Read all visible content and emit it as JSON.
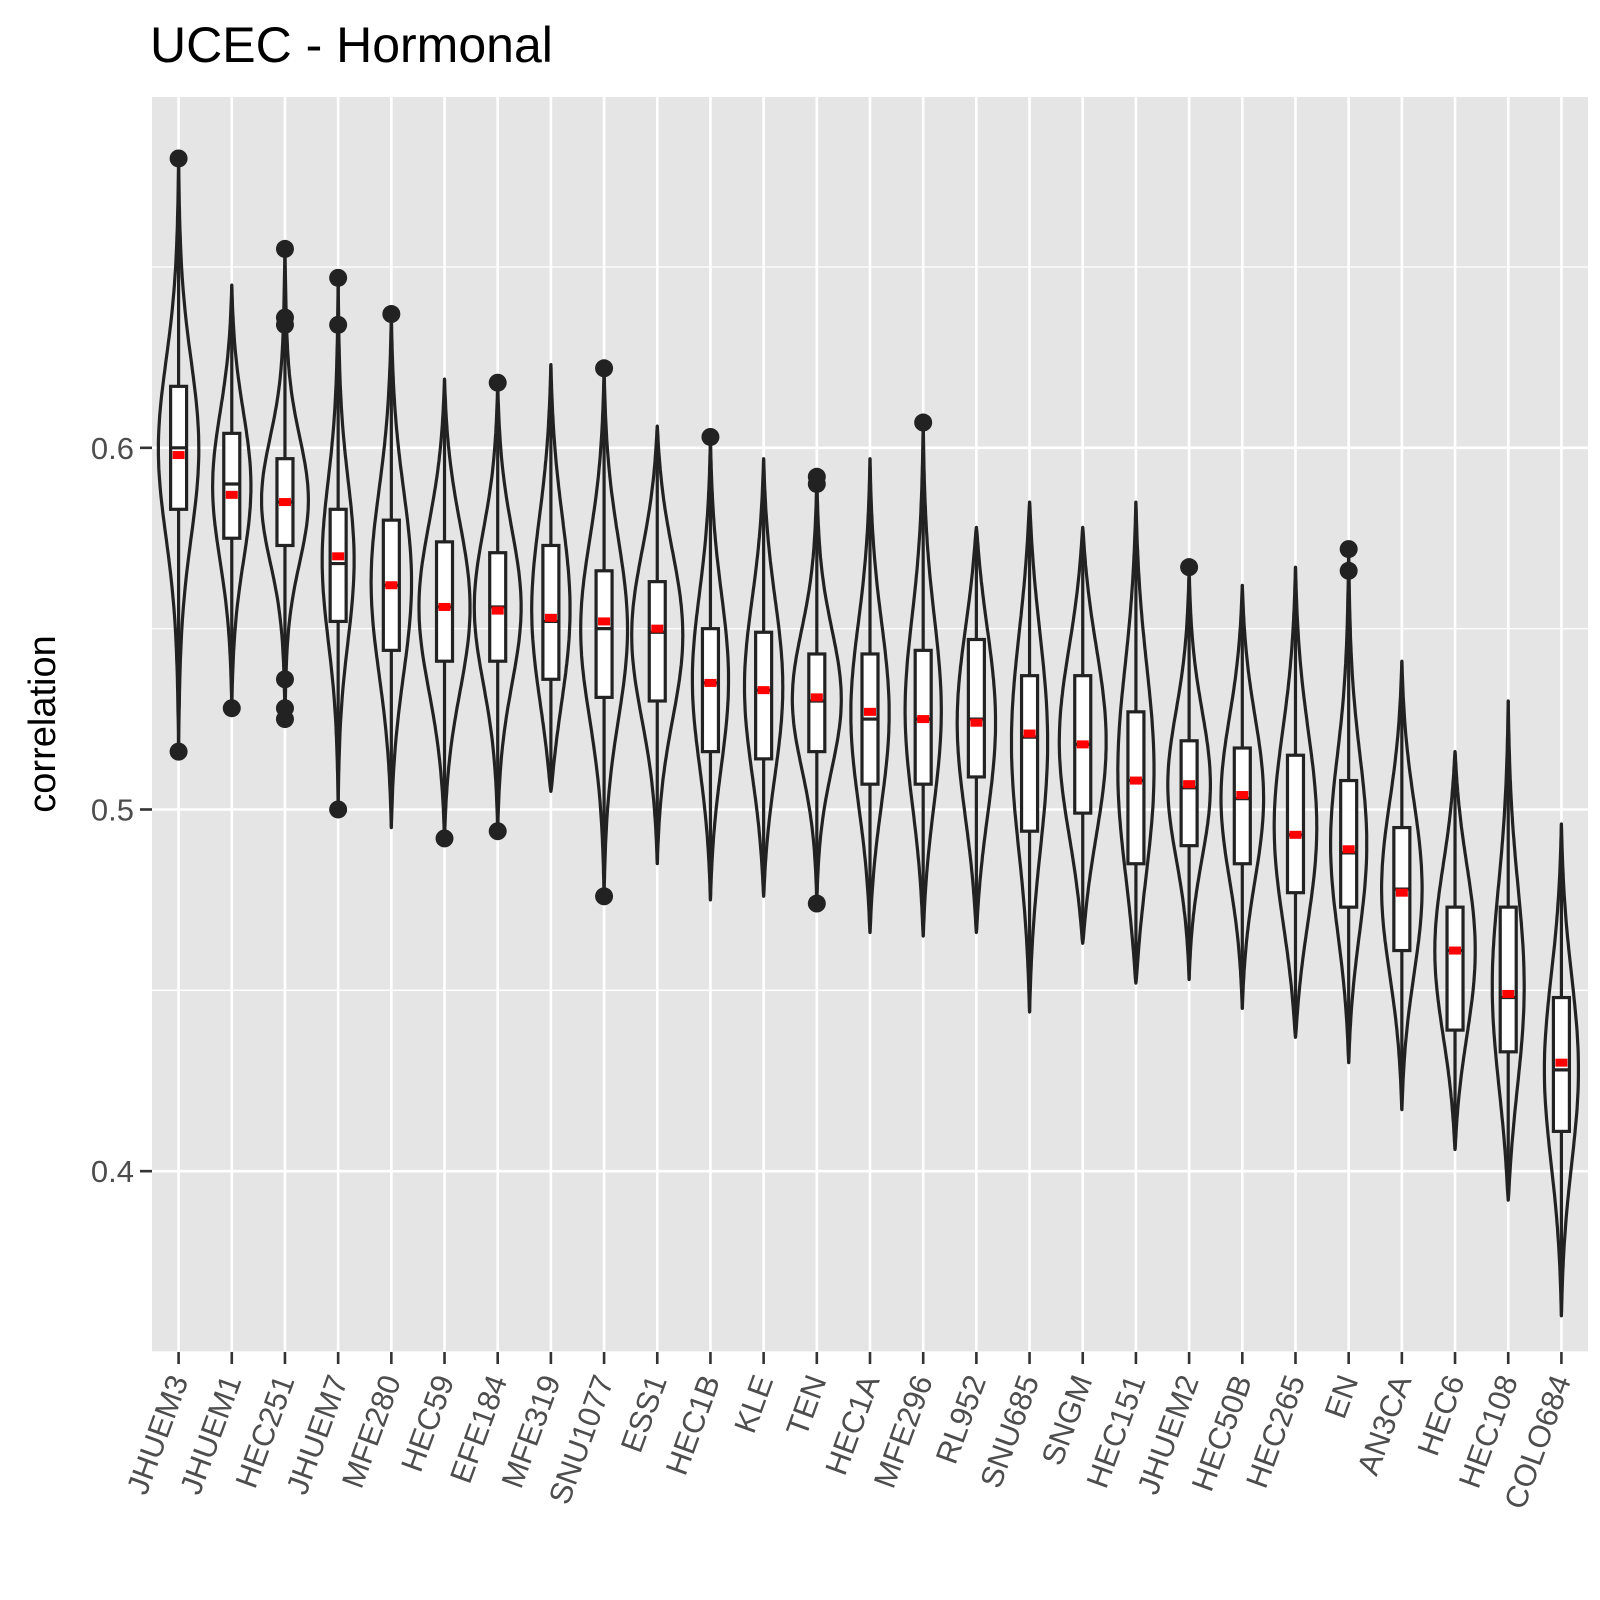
{
  "chart_data": {
    "type": "violin",
    "title": "UCEC - Hormonal",
    "xlabel": "",
    "ylabel": "correlation",
    "ylim": [
      0.35,
      0.697
    ],
    "yticks": [
      0.4,
      0.5,
      0.6
    ],
    "ytick_labels": [
      "0.4",
      "0.5",
      "0.6"
    ],
    "grid": true,
    "legend": "none",
    "colors": {
      "panel": "#e5e5e5",
      "grid": "#ffffff",
      "outline": "#222222",
      "mean": "#ff0000",
      "tick_text": "#4d4d4d"
    },
    "categories": [
      "JHUEM3",
      "JHUEM1",
      "HEC251",
      "JHUEM7",
      "MFE280",
      "HEC59",
      "EFE184",
      "MFE319",
      "SNU1077",
      "ESS1",
      "HEC1B",
      "KLE",
      "TEN",
      "HEC1A",
      "MFE296",
      "RL952",
      "SNU685",
      "SNGM",
      "HEC151",
      "JHUEM2",
      "HEC50B",
      "HEC265",
      "EN",
      "AN3CA",
      "HEC6",
      "HEC108",
      "COLO684"
    ],
    "series": [
      {
        "category": "JHUEM3",
        "min": 0.516,
        "max": 0.68,
        "q1": 0.583,
        "q3": 0.617,
        "median": 0.6,
        "mean": 0.598,
        "width": 0.38,
        "outliers": [
          0.68,
          0.516
        ]
      },
      {
        "category": "JHUEM1",
        "min": 0.528,
        "max": 0.645,
        "q1": 0.575,
        "q3": 0.604,
        "median": 0.59,
        "mean": 0.587,
        "width": 0.36,
        "outliers": [
          0.528
        ]
      },
      {
        "category": "HEC251",
        "min": 0.525,
        "max": 0.655,
        "q1": 0.573,
        "q3": 0.597,
        "median": 0.585,
        "mean": 0.585,
        "width": 0.44,
        "outliers": [
          0.655,
          0.636,
          0.634,
          0.536,
          0.528,
          0.525
        ]
      },
      {
        "category": "JHUEM7",
        "min": 0.5,
        "max": 0.647,
        "q1": 0.552,
        "q3": 0.583,
        "median": 0.568,
        "mean": 0.57,
        "width": 0.3,
        "outliers": [
          0.647,
          0.634,
          0.5
        ]
      },
      {
        "category": "MFE280",
        "min": 0.495,
        "max": 0.637,
        "q1": 0.544,
        "q3": 0.58,
        "median": 0.562,
        "mean": 0.562,
        "width": 0.38,
        "outliers": [
          0.637
        ]
      },
      {
        "category": "HEC59",
        "min": 0.492,
        "max": 0.619,
        "q1": 0.541,
        "q3": 0.574,
        "median": 0.556,
        "mean": 0.556,
        "width": 0.48,
        "outliers": [
          0.492
        ]
      },
      {
        "category": "EFE184",
        "min": 0.494,
        "max": 0.618,
        "q1": 0.541,
        "q3": 0.571,
        "median": 0.556,
        "mean": 0.555,
        "width": 0.44,
        "outliers": [
          0.618,
          0.494
        ]
      },
      {
        "category": "MFE319",
        "min": 0.505,
        "max": 0.623,
        "q1": 0.536,
        "q3": 0.573,
        "median": 0.552,
        "mean": 0.553,
        "width": 0.36,
        "outliers": []
      },
      {
        "category": "SNU1077",
        "min": 0.476,
        "max": 0.622,
        "q1": 0.531,
        "q3": 0.566,
        "median": 0.55,
        "mean": 0.552,
        "width": 0.44,
        "outliers": [
          0.622,
          0.476
        ]
      },
      {
        "category": "ESS1",
        "min": 0.485,
        "max": 0.606,
        "q1": 0.53,
        "q3": 0.563,
        "median": 0.549,
        "mean": 0.55,
        "width": 0.48,
        "outliers": []
      },
      {
        "category": "HEC1B",
        "min": 0.475,
        "max": 0.603,
        "q1": 0.516,
        "q3": 0.55,
        "median": 0.535,
        "mean": 0.535,
        "width": 0.34,
        "outliers": [
          0.603
        ]
      },
      {
        "category": "KLE",
        "min": 0.476,
        "max": 0.597,
        "q1": 0.514,
        "q3": 0.549,
        "median": 0.533,
        "mean": 0.533,
        "width": 0.36,
        "outliers": []
      },
      {
        "category": "TEN",
        "min": 0.474,
        "max": 0.592,
        "q1": 0.516,
        "q3": 0.543,
        "median": 0.53,
        "mean": 0.531,
        "width": 0.46,
        "outliers": [
          0.592,
          0.59,
          0.474
        ]
      },
      {
        "category": "HEC1A",
        "min": 0.466,
        "max": 0.597,
        "q1": 0.507,
        "q3": 0.543,
        "median": 0.525,
        "mean": 0.527,
        "width": 0.36,
        "outliers": []
      },
      {
        "category": "MFE296",
        "min": 0.465,
        "max": 0.607,
        "q1": 0.507,
        "q3": 0.544,
        "median": 0.525,
        "mean": 0.525,
        "width": 0.34,
        "outliers": [
          0.607
        ]
      },
      {
        "category": "RL952",
        "min": 0.466,
        "max": 0.578,
        "q1": 0.509,
        "q3": 0.547,
        "median": 0.525,
        "mean": 0.524,
        "width": 0.36,
        "outliers": []
      },
      {
        "category": "SNU685",
        "min": 0.444,
        "max": 0.585,
        "q1": 0.494,
        "q3": 0.537,
        "median": 0.52,
        "mean": 0.521,
        "width": 0.34,
        "outliers": []
      },
      {
        "category": "SNGM",
        "min": 0.463,
        "max": 0.578,
        "q1": 0.499,
        "q3": 0.537,
        "median": 0.518,
        "mean": 0.518,
        "width": 0.44,
        "outliers": []
      },
      {
        "category": "HEC151",
        "min": 0.452,
        "max": 0.585,
        "q1": 0.485,
        "q3": 0.527,
        "median": 0.508,
        "mean": 0.508,
        "width": 0.34,
        "outliers": []
      },
      {
        "category": "JHUEM2",
        "min": 0.453,
        "max": 0.567,
        "q1": 0.49,
        "q3": 0.519,
        "median": 0.506,
        "mean": 0.507,
        "width": 0.4,
        "outliers": [
          0.567
        ]
      },
      {
        "category": "HEC50B",
        "min": 0.445,
        "max": 0.562,
        "q1": 0.485,
        "q3": 0.517,
        "median": 0.503,
        "mean": 0.504,
        "width": 0.4,
        "outliers": []
      },
      {
        "category": "HEC265",
        "min": 0.437,
        "max": 0.567,
        "q1": 0.477,
        "q3": 0.515,
        "median": 0.493,
        "mean": 0.493,
        "width": 0.4,
        "outliers": []
      },
      {
        "category": "EN",
        "min": 0.43,
        "max": 0.572,
        "q1": 0.473,
        "q3": 0.508,
        "median": 0.488,
        "mean": 0.489,
        "width": 0.34,
        "outliers": [
          0.572,
          0.566
        ]
      },
      {
        "category": "AN3CA",
        "min": 0.417,
        "max": 0.541,
        "q1": 0.461,
        "q3": 0.495,
        "median": 0.478,
        "mean": 0.477,
        "width": 0.38,
        "outliers": []
      },
      {
        "category": "HEC6",
        "min": 0.406,
        "max": 0.516,
        "q1": 0.439,
        "q3": 0.473,
        "median": 0.461,
        "mean": 0.461,
        "width": 0.38,
        "outliers": []
      },
      {
        "category": "HEC108",
        "min": 0.392,
        "max": 0.53,
        "q1": 0.433,
        "q3": 0.473,
        "median": 0.448,
        "mean": 0.449,
        "width": 0.3,
        "outliers": []
      },
      {
        "category": "COLO684",
        "min": 0.36,
        "max": 0.496,
        "q1": 0.411,
        "q3": 0.448,
        "median": 0.428,
        "mean": 0.43,
        "width": 0.32,
        "outliers": []
      }
    ]
  }
}
